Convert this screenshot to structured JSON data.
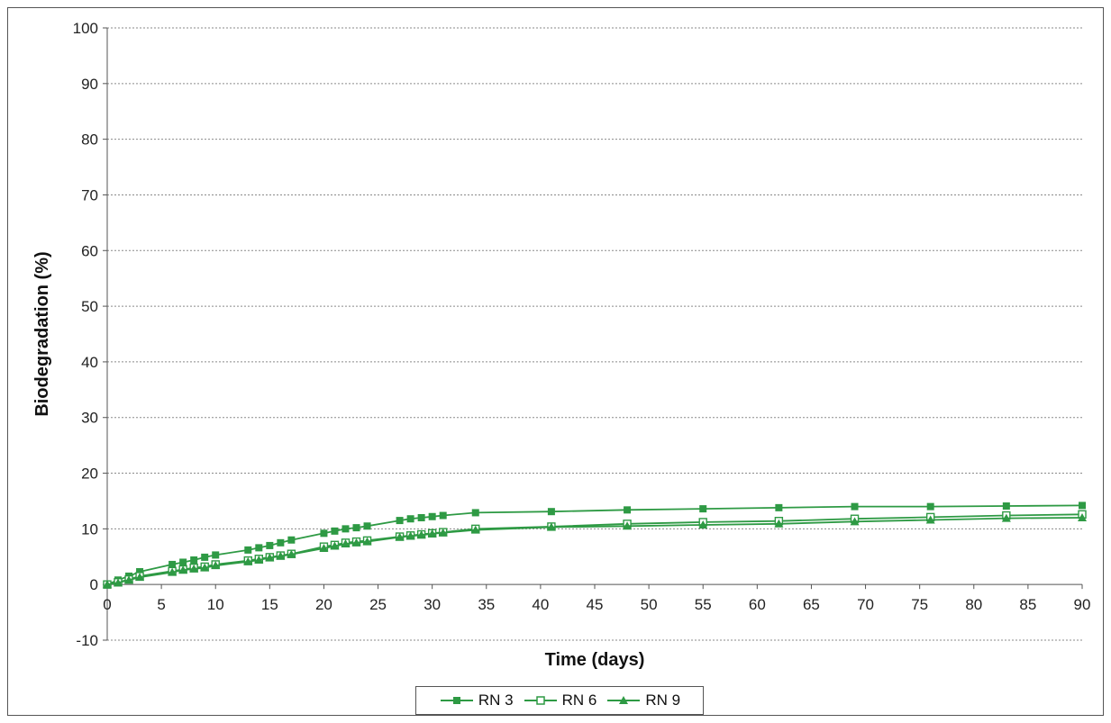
{
  "chart_data": {
    "type": "line",
    "xlabel": "Time (days)",
    "ylabel": "Biodegradation  (%)",
    "xlim": [
      0,
      90
    ],
    "ylim": [
      -10,
      100
    ],
    "x_ticks": [
      0,
      5,
      10,
      15,
      20,
      25,
      30,
      35,
      40,
      45,
      50,
      55,
      60,
      65,
      70,
      75,
      80,
      85,
      90
    ],
    "y_ticks": [
      -10,
      0,
      10,
      20,
      30,
      40,
      50,
      60,
      70,
      80,
      90,
      100
    ],
    "grid": "horizontal dotted",
    "legend_position": "bottom",
    "line_color": "#2e9a44",
    "series": [
      {
        "name": "RN 3",
        "marker": "filled-square",
        "x": [
          0,
          1,
          2,
          3,
          6,
          7,
          8,
          9,
          10,
          13,
          14,
          15,
          16,
          17,
          20,
          21,
          22,
          23,
          24,
          27,
          28,
          29,
          30,
          31,
          34,
          41,
          48,
          55,
          62,
          69,
          76,
          83,
          90
        ],
        "y": [
          0,
          0.8,
          1.5,
          2.3,
          3.6,
          4.0,
          4.4,
          4.9,
          5.3,
          6.2,
          6.6,
          7.0,
          7.5,
          8.0,
          9.2,
          9.6,
          10.0,
          10.2,
          10.5,
          11.5,
          11.8,
          12.0,
          12.2,
          12.4,
          12.9,
          13.1,
          13.4,
          13.6,
          13.8,
          14.0,
          14.0,
          14.1,
          14.2
        ]
      },
      {
        "name": "RN 6",
        "marker": "open-square",
        "x": [
          0,
          1,
          2,
          3,
          6,
          7,
          8,
          9,
          10,
          13,
          14,
          15,
          16,
          17,
          20,
          21,
          22,
          23,
          24,
          27,
          28,
          29,
          30,
          31,
          34,
          41,
          48,
          55,
          62,
          69,
          76,
          83,
          90
        ],
        "y": [
          0,
          0.4,
          0.9,
          1.5,
          2.4,
          2.7,
          3.0,
          3.2,
          3.6,
          4.3,
          4.6,
          4.9,
          5.2,
          5.5,
          6.8,
          7.1,
          7.5,
          7.7,
          7.9,
          8.6,
          8.8,
          9.0,
          9.2,
          9.4,
          10.0,
          10.4,
          10.9,
          11.2,
          11.4,
          11.8,
          12.1,
          12.4,
          12.6
        ]
      },
      {
        "name": "RN 9",
        "marker": "filled-triangle",
        "x": [
          0,
          1,
          2,
          3,
          6,
          7,
          8,
          9,
          10,
          13,
          14,
          15,
          16,
          17,
          20,
          21,
          22,
          23,
          24,
          27,
          28,
          29,
          30,
          31,
          34,
          41,
          48,
          55,
          62,
          69,
          76,
          83,
          90
        ],
        "y": [
          0,
          0.3,
          0.8,
          1.3,
          2.2,
          2.6,
          2.8,
          3.0,
          3.4,
          4.1,
          4.4,
          4.8,
          5.1,
          5.4,
          6.5,
          6.9,
          7.3,
          7.5,
          7.7,
          8.5,
          8.7,
          8.9,
          9.1,
          9.3,
          9.8,
          10.3,
          10.5,
          10.7,
          10.9,
          11.3,
          11.6,
          11.9,
          12.0
        ]
      }
    ]
  }
}
